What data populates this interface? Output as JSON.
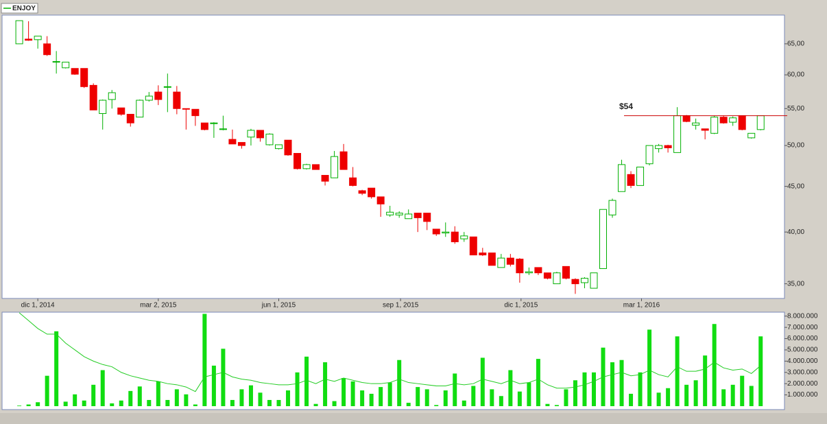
{
  "chart_data": [
    {
      "type": "candlestick",
      "x": [
        "2014-11-17",
        "2014-11-24",
        "2014-12-01",
        "2014-12-08",
        "2014-12-15",
        "2014-12-22",
        "2014-12-29",
        "2015-01-05",
        "2015-01-12",
        "2015-01-19",
        "2015-01-26",
        "2015-02-02",
        "2015-02-09",
        "2015-02-16",
        "2015-02-23",
        "2015-03-02",
        "2015-03-09",
        "2015-03-16",
        "2015-03-23",
        "2015-03-30",
        "2015-04-06",
        "2015-04-13",
        "2015-04-20",
        "2015-04-27",
        "2015-05-04",
        "2015-05-11",
        "2015-05-18",
        "2015-05-25",
        "2015-06-01",
        "2015-06-08",
        "2015-06-15",
        "2015-06-22",
        "2015-06-29",
        "2015-07-06",
        "2015-07-13",
        "2015-07-20",
        "2015-07-27",
        "2015-08-03",
        "2015-08-10",
        "2015-08-17",
        "2015-08-24",
        "2015-08-31",
        "2015-09-07",
        "2015-09-14",
        "2015-09-21",
        "2015-09-28",
        "2015-10-05",
        "2015-10-12",
        "2015-10-19",
        "2015-10-26",
        "2015-11-02",
        "2015-11-09",
        "2015-11-16",
        "2015-11-23",
        "2015-11-30",
        "2015-12-07",
        "2015-12-14",
        "2015-12-21",
        "2015-12-28",
        "2016-01-04",
        "2016-01-11",
        "2016-01-18",
        "2016-01-25",
        "2016-02-01",
        "2016-02-08",
        "2016-02-15",
        "2016-02-22",
        "2016-02-29",
        "2016-03-07",
        "2016-03-14",
        "2016-03-21",
        "2016-03-28",
        "2016-04-04",
        "2016-04-11",
        "2016-04-18",
        "2016-04-25",
        "2016-05-02",
        "2016-05-09",
        "2016-05-16",
        "2016-05-23",
        "2016-05-30"
      ],
      "series": [
        {
          "name": "ENJOY",
          "color": "#00b000",
          "down_color": "#ee0000",
          "open": [
            65,
            65.8,
            65.7,
            65,
            62,
            61.1,
            61,
            61,
            58.4,
            54.3,
            56.3,
            55.1,
            54.2,
            53.8,
            56.2,
            57.4,
            58.1,
            57.4,
            55,
            54.9,
            53,
            52.9,
            52.1,
            50.8,
            50.4,
            51.1,
            52,
            50.1,
            49.6,
            50.7,
            49,
            47.1,
            47.6,
            46.3,
            46,
            49.2,
            46,
            44.5,
            44.8,
            43.8,
            41.8,
            41.8,
            41.4,
            42,
            42,
            40.3,
            39.9,
            40,
            39.3,
            39.5,
            37.9,
            37.9,
            36.5,
            37.4,
            37.3,
            36,
            36.5,
            36,
            35,
            36.6,
            35.4,
            35.1,
            34.6,
            36.4,
            41.8,
            44.4,
            46.4,
            45.1,
            47.7,
            49.6,
            50,
            49.1,
            54,
            52.7,
            52.2,
            51.6,
            53.8,
            53.1,
            54,
            51,
            52.1
          ],
          "high": [
            69,
            68.9,
            66.3,
            66.3,
            63.8,
            62,
            61,
            61,
            58.7,
            56.3,
            57.7,
            55.1,
            54.2,
            56.3,
            57.4,
            58.4,
            60.2,
            58.3,
            55,
            54.9,
            53,
            53.1,
            54,
            52.1,
            50.4,
            52.2,
            52,
            51.6,
            50.1,
            50.7,
            49,
            47.7,
            47.6,
            46.3,
            49.3,
            50.2,
            47.3,
            44.6,
            44.8,
            43.8,
            42.8,
            42.2,
            42.4,
            42,
            42,
            40.3,
            41,
            40.6,
            40,
            39.5,
            38.4,
            37.9,
            37.8,
            37.8,
            37.4,
            36.5,
            36.5,
            36,
            36.1,
            36.6,
            35.5,
            35.6,
            36,
            42.4,
            43.6,
            48.2,
            46.8,
            47.3,
            50,
            50.2,
            50.1,
            55.2,
            54.1,
            53.6,
            52.2,
            54,
            54,
            53.9,
            54,
            51.6,
            54
          ],
          "low": [
            65,
            65.5,
            64.2,
            63,
            60.2,
            61,
            60,
            58,
            54.8,
            52.1,
            55,
            54,
            52.5,
            53.8,
            56,
            55.5,
            54.5,
            54.2,
            52.1,
            52.6,
            52,
            51,
            52,
            50.2,
            49.6,
            50,
            50.5,
            50,
            49.5,
            48.7,
            47,
            47,
            47,
            45.1,
            46,
            47,
            45,
            44,
            43.6,
            41.6,
            41.6,
            41.5,
            41.4,
            40,
            40.2,
            39.6,
            39.5,
            38.8,
            39,
            37.7,
            37.6,
            36.7,
            36.5,
            36.6,
            35.1,
            35.8,
            35.8,
            35.4,
            35,
            35.4,
            34.1,
            34.6,
            34.6,
            36.4,
            41.5,
            44.4,
            44.8,
            45.1,
            47.5,
            49.1,
            49.1,
            49.1,
            53.1,
            52.1,
            50.8,
            51.5,
            52.9,
            52.6,
            52,
            50.9,
            52
          ],
          "close": [
            69,
            65.6,
            66.3,
            63.2,
            62.1,
            62,
            60.1,
            58.2,
            54.8,
            56.2,
            57.3,
            54.2,
            53,
            56.2,
            56.8,
            56.3,
            58.2,
            55,
            54.9,
            54,
            52.1,
            53,
            52.2,
            50.2,
            50,
            52,
            51,
            51.5,
            50.1,
            48.8,
            47.1,
            47.6,
            47,
            45.6,
            48.6,
            47,
            45.1,
            44.2,
            43.8,
            43,
            42.1,
            42,
            41.9,
            41.5,
            41.1,
            39.8,
            40,
            39,
            39.6,
            37.7,
            37.7,
            36.7,
            37.4,
            36.8,
            36,
            36.1,
            36,
            35.5,
            36,
            35.5,
            35,
            35.5,
            36,
            42.4,
            43.4,
            47.6,
            45.1,
            47.3,
            50,
            50,
            49.7,
            54,
            53.2,
            53,
            52,
            53.8,
            53,
            53.7,
            52.1,
            51.6,
            54
          ]
        }
      ],
      "log_scale": true,
      "xlim": [
        "2014-11-04",
        "2016-06-17"
      ],
      "xticks": [
        {
          "value": "2014-12-01",
          "label": "dic 1, 2014"
        },
        {
          "value": "2015-03-02",
          "label": "mar 2, 2015"
        },
        {
          "value": "2015-06-01",
          "label": "jun 1, 2015"
        },
        {
          "value": "2015-09-01",
          "label": "sep 1, 2015"
        },
        {
          "value": "2015-12-01",
          "label": "dic 1, 2015"
        },
        {
          "value": "2016-03-01",
          "label": "mar 1, 2016"
        }
      ],
      "ylim": [
        33.7,
        70
      ],
      "yticks": [
        {
          "value": 35,
          "label": "35,00"
        },
        {
          "value": 40,
          "label": "40,00"
        },
        {
          "value": 45,
          "label": "45,00"
        },
        {
          "value": 50,
          "label": "50,00"
        },
        {
          "value": 55,
          "label": "55,00"
        },
        {
          "value": 60,
          "label": "60,00"
        },
        {
          "value": 65,
          "label": "65,00"
        }
      ],
      "legend": "top-left",
      "annotations": [
        {
          "label": "$54",
          "value": 54,
          "color": "#cc0000"
        }
      ]
    },
    {
      "type": "bar",
      "series": [
        {
          "type": "bar",
          "color": "#11dd11",
          "values": [
            50000,
            150000,
            350000,
            2700000,
            6650000,
            400000,
            1050000,
            500000,
            1900000,
            3200000,
            250000,
            500000,
            1350000,
            1750000,
            550000,
            2200000,
            550000,
            1500000,
            1050000,
            150000,
            8200000,
            3600000,
            5100000,
            550000,
            1500000,
            1850000,
            1200000,
            550000,
            550000,
            1400000,
            3000000,
            4400000,
            200000,
            3900000,
            450000,
            2500000,
            2200000,
            1400000,
            1100000,
            1700000,
            2100000,
            4100000,
            300000,
            1700000,
            1500000,
            100000,
            1400000,
            2900000,
            500000,
            1800000,
            4300000,
            1500000,
            900000,
            3200000,
            1300000,
            2100000,
            4200000,
            200000,
            100000,
            1500000,
            2300000,
            3000000,
            3000000,
            5200000,
            3900000,
            4100000,
            1100000,
            3000000,
            6800000,
            1200000,
            1600000,
            6200000,
            1900000,
            2300000,
            4500000,
            7300000,
            1500000,
            1900000,
            2700000,
            1800000,
            6200000
          ]
        },
        {
          "type": "line",
          "color": "#22cc22",
          "values": [
            8300000,
            7600000,
            6900000,
            6400000,
            6400000,
            5600000,
            5000000,
            4400000,
            4000000,
            3700000,
            3500000,
            3000000,
            2700000,
            2500000,
            2300000,
            2200000,
            2000000,
            1900000,
            1700000,
            1300000,
            2600000,
            2800000,
            3000000,
            2600000,
            2400000,
            2300000,
            2100000,
            2000000,
            1900000,
            1900000,
            2000000,
            2300000,
            2000000,
            2400000,
            2200000,
            2500000,
            2300000,
            2100000,
            2000000,
            2000000,
            2100000,
            2400000,
            2100000,
            2000000,
            1900000,
            1800000,
            1800000,
            2000000,
            1900000,
            2000000,
            2400000,
            2200000,
            2000000,
            2300000,
            2000000,
            2100000,
            2400000,
            1900000,
            1600000,
            1600000,
            1700000,
            1900000,
            2200000,
            2600000,
            2800000,
            3000000,
            2700000,
            2800000,
            3200000,
            2800000,
            2600000,
            3500000,
            3100000,
            3100000,
            3300000,
            3900000,
            3400000,
            3200000,
            3300000,
            2900000,
            3600000
          ]
        }
      ],
      "ylim": [
        0,
        8350000
      ],
      "yticks": [
        {
          "value": 1000000,
          "label": "1.000.000"
        },
        {
          "value": 2000000,
          "label": "2.000.000"
        },
        {
          "value": 3000000,
          "label": "3.000.000"
        },
        {
          "value": 4000000,
          "label": "4.000.000"
        },
        {
          "value": 5000000,
          "label": "5.000.000"
        },
        {
          "value": 6000000,
          "label": "6.000.000"
        },
        {
          "value": 7000000,
          "label": "7.000.000"
        },
        {
          "value": 8000000,
          "label": "8.000.000"
        }
      ]
    }
  ]
}
